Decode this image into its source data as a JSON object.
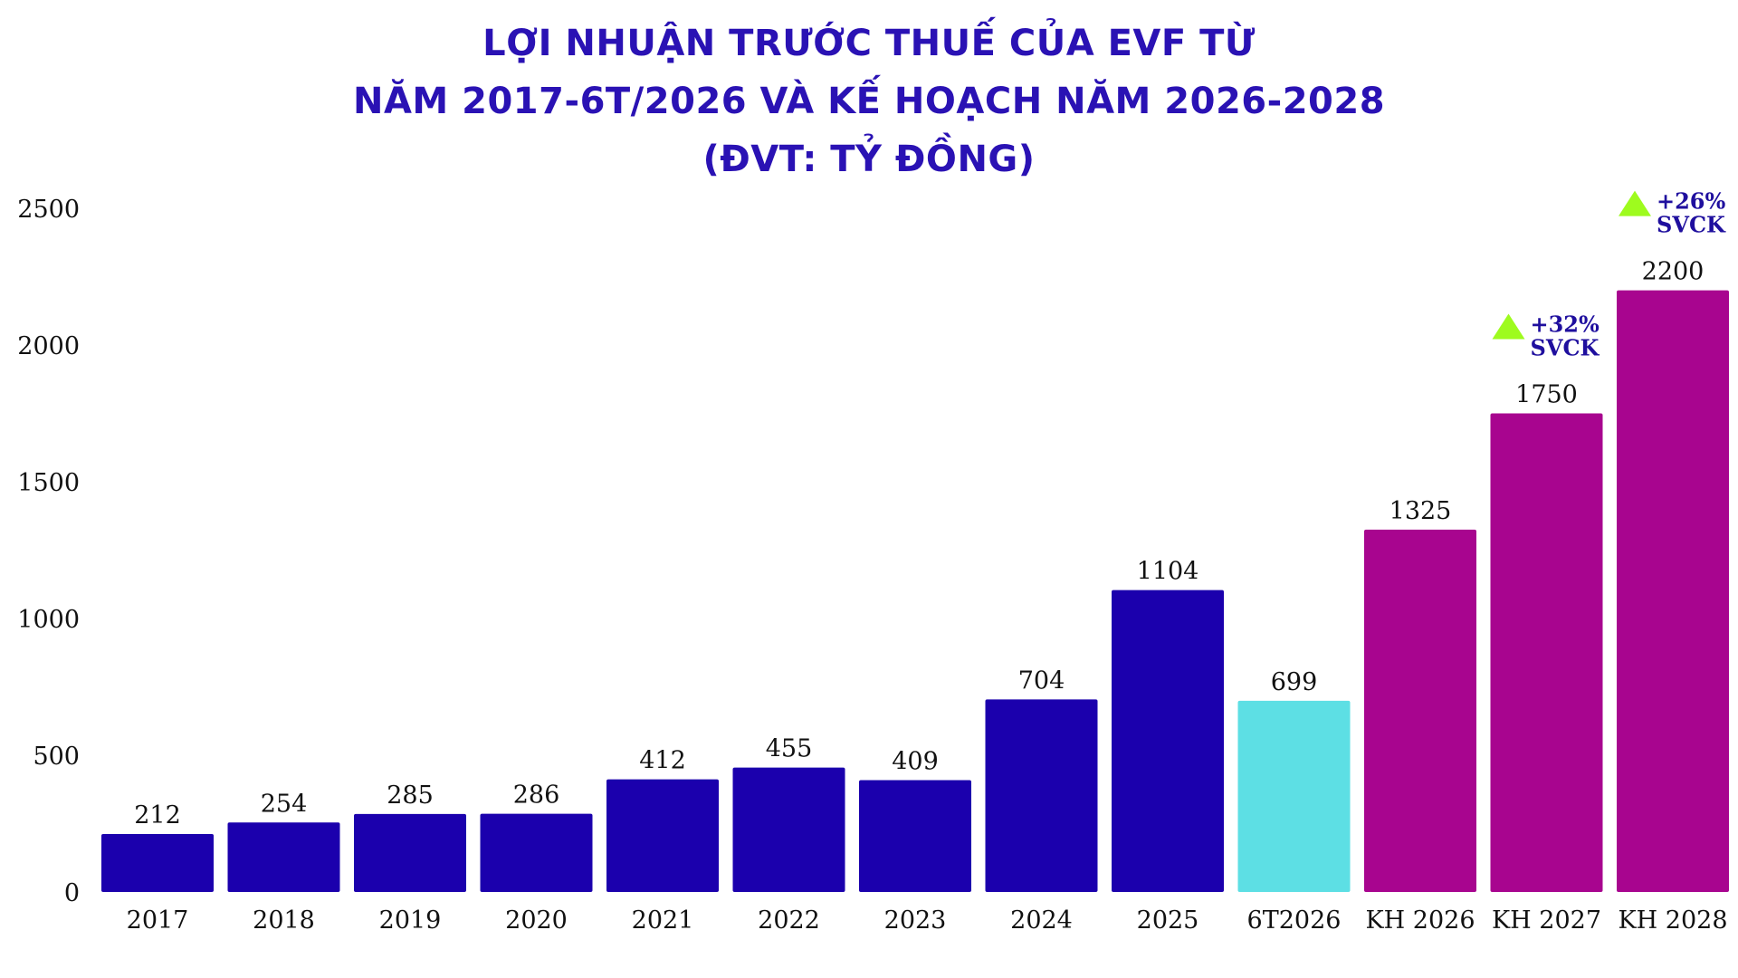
{
  "title_lines": [
    "LỢI NHUẬN TRƯỚC THUẾ CỦA EVF TỪ",
    "NĂM 2017-6T/2026 VÀ KẾ HOẠCH NĂM 2026-2028",
    "(ĐVT: TỶ ĐỒNG)"
  ],
  "chart_data": {
    "type": "bar",
    "title": "LỢI NHUẬN TRƯỚC THUẾ CỦA EVF TỪ NĂM 2017-6T/2026 VÀ KẾ HOẠCH NĂM 2026-2028 (ĐVT: TỶ ĐỒNG)",
    "xlabel": "",
    "ylabel": "",
    "ylim": [
      0,
      2500
    ],
    "yticks": [
      0,
      500,
      1000,
      1500,
      2000,
      2500
    ],
    "grid": false,
    "legend": "none",
    "categories": [
      "2017",
      "2018",
      "2019",
      "2020",
      "2021",
      "2022",
      "2023",
      "2024",
      "2025",
      "6T2026",
      "KH 2026",
      "KH 2027",
      "KH 2028"
    ],
    "values": [
      212,
      254,
      285,
      286,
      412,
      455,
      409,
      704,
      1104,
      699,
      1325,
      1750,
      2200
    ],
    "data_labels": [
      "212",
      "254",
      "285",
      "286",
      "412",
      "455",
      "409",
      "704",
      "1104",
      "699",
      "1325",
      "1750",
      "2200"
    ],
    "bar_colors": [
      "#1b00ad",
      "#1b00ad",
      "#1b00ad",
      "#1b00ad",
      "#1b00ad",
      "#1b00ad",
      "#1b00ad",
      "#1b00ad",
      "#1b00ad",
      "#5ddfe4",
      "#a8058f",
      "#a8058f",
      "#a8058f"
    ],
    "annotations": [
      {
        "category": "KH 2027",
        "lines": [
          "+32%",
          "SVCK"
        ],
        "icon": "triangle-up-icon",
        "icon_color": "#9efb1e"
      },
      {
        "category": "KH 2028",
        "lines": [
          "+26%",
          "SVCK"
        ],
        "icon": "triangle-up-icon",
        "icon_color": "#9efb1e"
      }
    ]
  },
  "colors": {
    "title": "#2a12b4",
    "actual": "#1b00ad",
    "half_year": "#5ddfe4",
    "plan": "#a8058f",
    "annotation_text": "#1f0f9e",
    "arrow": "#9efb1e"
  }
}
